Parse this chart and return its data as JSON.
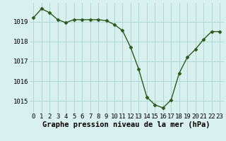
{
  "x": [
    0,
    1,
    2,
    3,
    4,
    5,
    6,
    7,
    8,
    9,
    10,
    11,
    12,
    13,
    14,
    15,
    16,
    17,
    18,
    19,
    20,
    21,
    22,
    23
  ],
  "y": [
    1019.2,
    1019.65,
    1019.45,
    1019.1,
    1018.95,
    1019.1,
    1019.1,
    1019.1,
    1019.1,
    1019.05,
    1018.85,
    1018.55,
    1017.7,
    1016.6,
    1015.2,
    1014.8,
    1014.65,
    1015.05,
    1016.4,
    1017.2,
    1017.6,
    1018.1,
    1018.5,
    1018.5
  ],
  "xlabel": "Graphe pression niveau de la mer (hPa)",
  "ylim": [
    1014.4,
    1019.95
  ],
  "yticks": [
    1015,
    1016,
    1017,
    1018,
    1019
  ],
  "xticks": [
    0,
    1,
    2,
    3,
    4,
    5,
    6,
    7,
    8,
    9,
    10,
    11,
    12,
    13,
    14,
    15,
    16,
    17,
    18,
    19,
    20,
    21,
    22,
    23
  ],
  "line_color": "#2d5a1b",
  "marker": "D",
  "marker_size": 2.5,
  "bg_color": "#d8f0ee",
  "grid_color": "#b0d8d4",
  "xlabel_fontsize": 7.5,
  "tick_fontsize": 6.5,
  "linewidth": 1.0
}
